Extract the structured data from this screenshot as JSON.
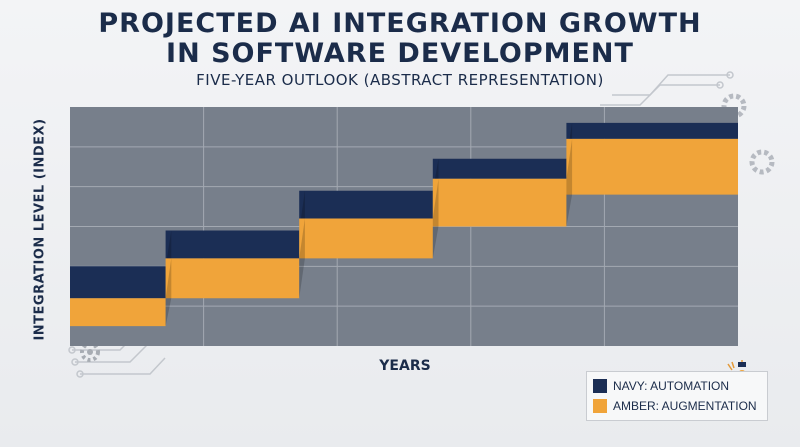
{
  "header": {
    "title_line1": "PROJECTED AI INTEGRATION GROWTH",
    "title_line2": "IN SOFTWARE DEVELOPMENT",
    "subtitle": "FIVE-YEAR OUTLOOK (ABSTRACT REPRESENTATION)"
  },
  "colors": {
    "navy": "#1b2e55",
    "amber": "#f0a43a",
    "plot_bg": "#777f8b",
    "grid": "#a3a9b2",
    "text": "#1b2c4a"
  },
  "legend": {
    "items": [
      {
        "label": "NAVY: AUTOMATION",
        "color": "#1b2e55"
      },
      {
        "label": "AMBER: AUGMENTATION",
        "color": "#f0a43a"
      }
    ]
  },
  "chart_data": {
    "type": "area",
    "title": "PROJECTED AI INTEGRATION GROWTH IN SOFTWARE DEVELOPMENT",
    "subtitle": "FIVE-YEAR OUTLOOK (ABSTRACT REPRESENTATION)",
    "xlabel": "YEARS",
    "ylabel": "INTEGRATION LEVEL (INDEX)",
    "x": [
      1,
      2,
      3,
      4,
      5
    ],
    "ylim": [
      0,
      6
    ],
    "grid": true,
    "legend_position": "bottom-right",
    "series": [
      {
        "name": "NAVY: AUTOMATION",
        "color": "#1b2e55",
        "lower": [
          1.2,
          2.2,
          3.2,
          4.2,
          5.2
        ],
        "upper": [
          2.0,
          2.9,
          3.9,
          4.7,
          5.6
        ]
      },
      {
        "name": "AMBER: AUGMENTATION",
        "color": "#f0a43a",
        "lower": [
          0.5,
          1.2,
          2.2,
          3.0,
          3.8
        ],
        "upper": [
          1.2,
          2.2,
          3.2,
          4.2,
          5.2
        ]
      }
    ]
  }
}
